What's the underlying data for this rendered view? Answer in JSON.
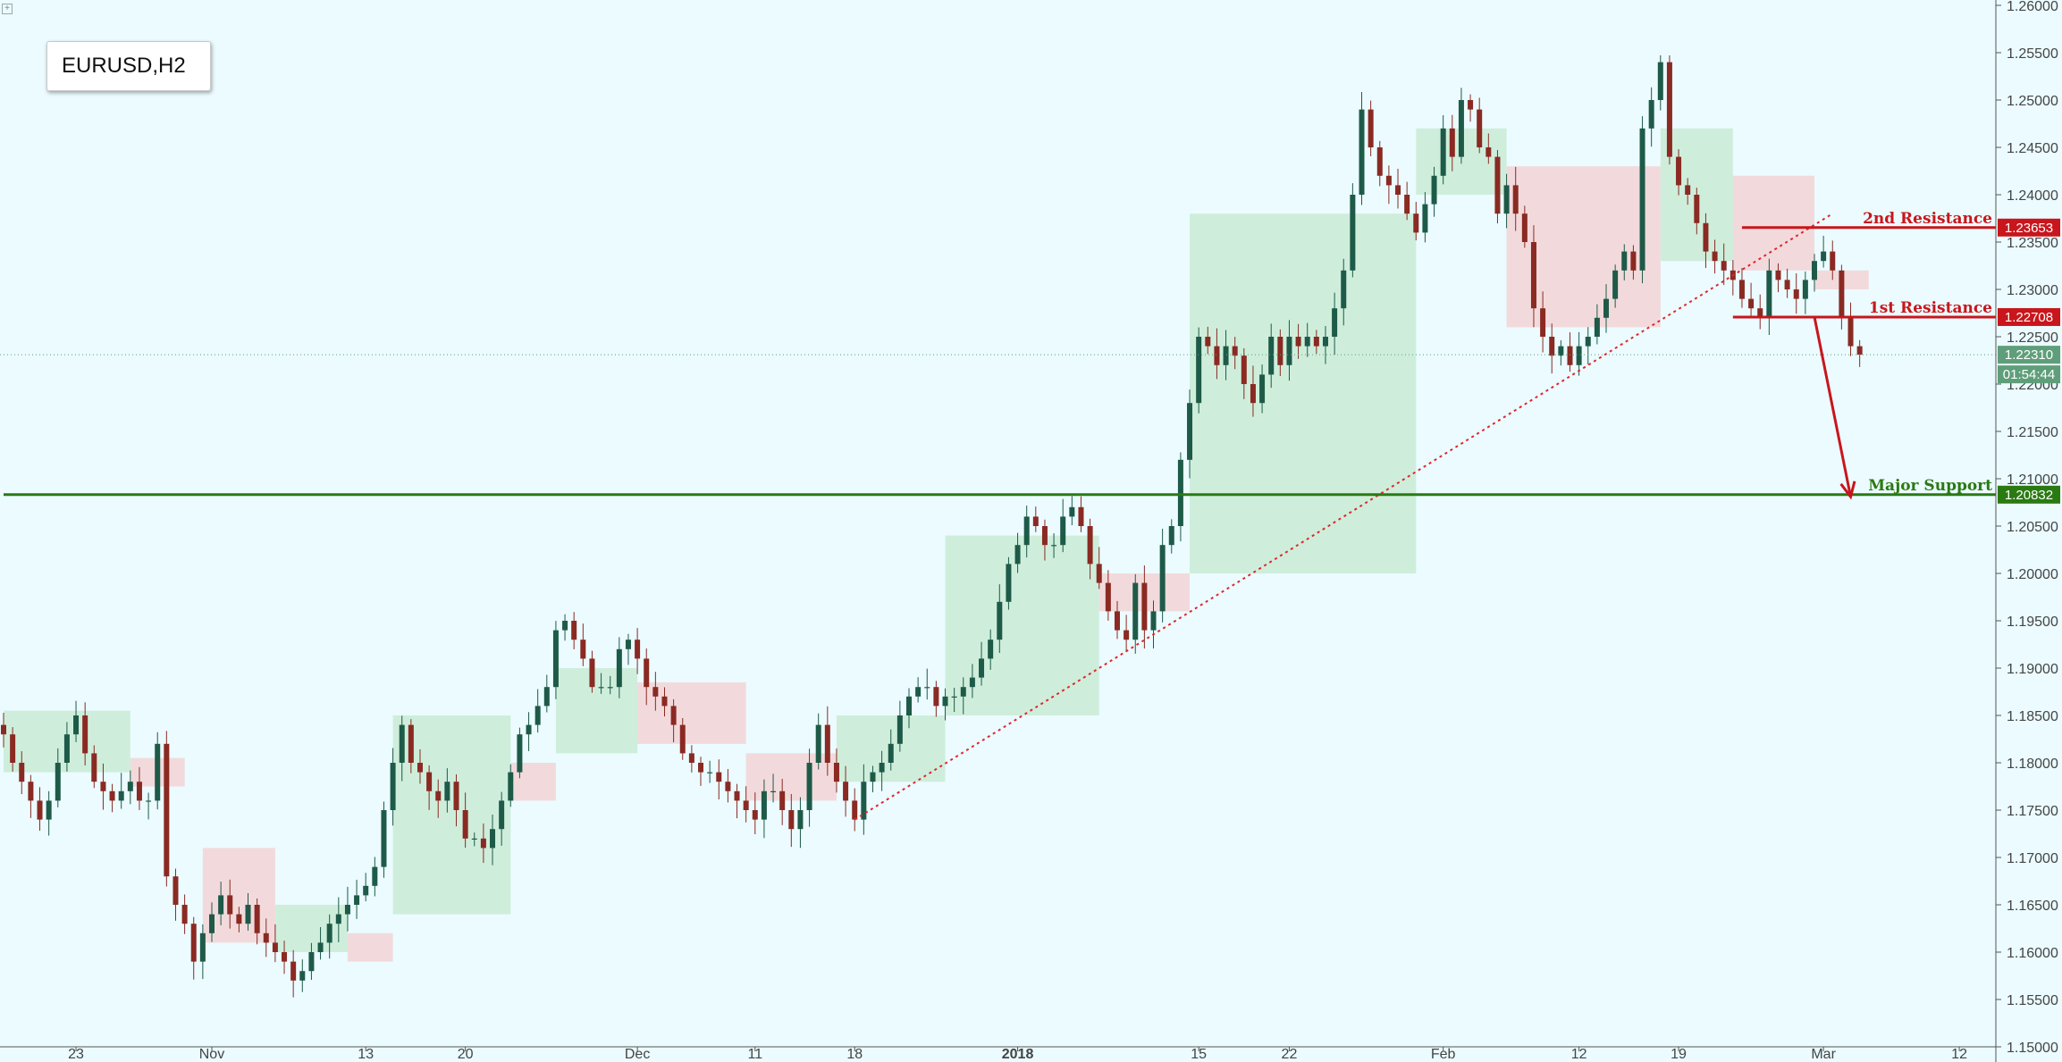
{
  "symbol": "EURUSD,H2",
  "colors": {
    "background": "#ebfbff",
    "up_candle": "#1e5a48",
    "down_candle": "#8a2a22",
    "resistance": "#c8161c",
    "support": "#2a7a12",
    "trendline": "#e0262a",
    "cloud_bull": "#c9ebd5",
    "cloud_bear": "#f3d3d6",
    "last_price": "#5f9e7a"
  },
  "chart_data": {
    "type": "candlestick",
    "title": "EURUSD,H2",
    "ylim": [
      1.15,
      1.26
    ],
    "y_ticks": [
      "1.15000",
      "1.15500",
      "1.16000",
      "1.16500",
      "1.17000",
      "1.17500",
      "1.18000",
      "1.18500",
      "1.19000",
      "1.19500",
      "1.20000",
      "1.20500",
      "1.21000",
      "1.21500",
      "1.22000",
      "1.22500",
      "1.23000",
      "1.23500",
      "1.24000",
      "1.24500",
      "1.25000",
      "1.25500",
      "1.26000"
    ],
    "x_ticks": [
      {
        "label": "23",
        "bar": 8
      },
      {
        "label": "Nov",
        "bar": 23
      },
      {
        "label": "13",
        "bar": 40
      },
      {
        "label": "20",
        "bar": 51
      },
      {
        "label": "Dec",
        "bar": 70
      },
      {
        "label": "11",
        "bar": 83
      },
      {
        "label": "18",
        "bar": 94
      },
      {
        "label": "2018",
        "bar": 112
      },
      {
        "label": "15",
        "bar": 132
      },
      {
        "label": "22",
        "bar": 142
      },
      {
        "label": "Feb",
        "bar": 159
      },
      {
        "label": "12",
        "bar": 174
      },
      {
        "label": "19",
        "bar": 185
      },
      {
        "label": "Mar",
        "bar": 201
      },
      {
        "label": "12",
        "bar": 216
      }
    ],
    "close": [
      1.183,
      1.18,
      1.178,
      1.176,
      1.174,
      1.176,
      1.18,
      1.183,
      1.185,
      1.181,
      1.178,
      1.177,
      1.176,
      1.177,
      1.178,
      1.176,
      1.176,
      1.182,
      1.168,
      1.165,
      1.163,
      1.159,
      1.162,
      1.164,
      1.166,
      1.164,
      1.163,
      1.165,
      1.162,
      1.161,
      1.16,
      1.159,
      1.157,
      1.158,
      1.16,
      1.161,
      1.163,
      1.164,
      1.165,
      1.166,
      1.167,
      1.169,
      1.175,
      1.18,
      1.184,
      1.18,
      1.179,
      1.177,
      1.176,
      1.178,
      1.175,
      1.172,
      1.172,
      1.171,
      1.173,
      1.176,
      1.179,
      1.183,
      1.184,
      1.186,
      1.188,
      1.194,
      1.195,
      1.193,
      1.191,
      1.188,
      1.188,
      1.188,
      1.192,
      1.193,
      1.191,
      1.188,
      1.187,
      1.186,
      1.184,
      1.181,
      1.18,
      1.179,
      1.179,
      1.178,
      1.177,
      1.176,
      1.175,
      1.174,
      1.177,
      1.177,
      1.175,
      1.173,
      1.175,
      1.18,
      1.184,
      1.18,
      1.178,
      1.176,
      1.174,
      1.178,
      1.179,
      1.18,
      1.182,
      1.185,
      1.187,
      1.188,
      1.188,
      1.186,
      1.187,
      1.187,
      1.188,
      1.189,
      1.191,
      1.193,
      1.197,
      1.201,
      1.203,
      1.206,
      1.205,
      1.203,
      1.203,
      1.206,
      1.207,
      1.205,
      1.201,
      1.199,
      1.196,
      1.194,
      1.193,
      1.199,
      1.194,
      1.196,
      1.203,
      1.205,
      1.212,
      1.218,
      1.225,
      1.224,
      1.222,
      1.224,
      1.223,
      1.22,
      1.218,
      1.221,
      1.225,
      1.222,
      1.225,
      1.224,
      1.225,
      1.224,
      1.225,
      1.228,
      1.232,
      1.24,
      1.249,
      1.245,
      1.242,
      1.241,
      1.24,
      1.238,
      1.236,
      1.239,
      1.242,
      1.247,
      1.244,
      1.25,
      1.249,
      1.245,
      1.244,
      1.238,
      1.241,
      1.238,
      1.235,
      1.228,
      1.225,
      1.223,
      1.224,
      1.222,
      1.224,
      1.225,
      1.227,
      1.229,
      1.232,
      1.234,
      1.232,
      1.247,
      1.25,
      1.254,
      1.244,
      1.241,
      1.24,
      1.237,
      1.234,
      1.233,
      1.232,
      1.231,
      1.229,
      1.228,
      1.227,
      1.232,
      1.231,
      1.23,
      1.229,
      1.231,
      1.233,
      1.234,
      1.232,
      1.227,
      1.224,
      1.2231
    ],
    "last_bar": 201,
    "cloud": [
      {
        "bars": [
          0,
          14
        ],
        "top": 1.1855,
        "bottom": 1.179,
        "kind": "bull"
      },
      {
        "bars": [
          14,
          20
        ],
        "top": 1.1805,
        "bottom": 1.1775,
        "kind": "bear"
      },
      {
        "bars": [
          22,
          30
        ],
        "top": 1.171,
        "bottom": 1.161,
        "kind": "bear"
      },
      {
        "bars": [
          30,
          38
        ],
        "top": 1.165,
        "bottom": 1.16,
        "kind": "bull"
      },
      {
        "bars": [
          38,
          43
        ],
        "top": 1.162,
        "bottom": 1.159,
        "kind": "bear"
      },
      {
        "bars": [
          43,
          56
        ],
        "top": 1.185,
        "bottom": 1.164,
        "kind": "bull"
      },
      {
        "bars": [
          56,
          61
        ],
        "top": 1.18,
        "bottom": 1.176,
        "kind": "bear"
      },
      {
        "bars": [
          61,
          70
        ],
        "top": 1.19,
        "bottom": 1.181,
        "kind": "bull"
      },
      {
        "bars": [
          70,
          82
        ],
        "top": 1.1885,
        "bottom": 1.182,
        "kind": "bear"
      },
      {
        "bars": [
          82,
          92
        ],
        "top": 1.181,
        "bottom": 1.176,
        "kind": "bear"
      },
      {
        "bars": [
          92,
          104
        ],
        "top": 1.185,
        "bottom": 1.178,
        "kind": "bull"
      },
      {
        "bars": [
          104,
          121
        ],
        "top": 1.204,
        "bottom": 1.185,
        "kind": "bull"
      },
      {
        "bars": [
          121,
          131
        ],
        "top": 1.2,
        "bottom": 1.196,
        "kind": "bear"
      },
      {
        "bars": [
          131,
          156
        ],
        "top": 1.238,
        "bottom": 1.2,
        "kind": "bull"
      },
      {
        "bars": [
          156,
          166
        ],
        "top": 1.247,
        "bottom": 1.24,
        "kind": "bull"
      },
      {
        "bars": [
          166,
          183
        ],
        "top": 1.243,
        "bottom": 1.226,
        "kind": "bear"
      },
      {
        "bars": [
          183,
          191
        ],
        "top": 1.247,
        "bottom": 1.233,
        "kind": "bull"
      },
      {
        "bars": [
          191,
          200
        ],
        "top": 1.242,
        "bottom": 1.232,
        "kind": "bear"
      },
      {
        "bars": [
          200,
          206
        ],
        "top": 1.232,
        "bottom": 1.23,
        "kind": "bear"
      }
    ],
    "trendline": {
      "from": {
        "bar": 94,
        "price": 1.174
      },
      "to": {
        "bar": 202,
        "price": 1.238
      }
    },
    "current_price_line": 1.2231,
    "levels": [
      {
        "name": "2nd Resistance",
        "value": 1.23653,
        "tag": "1.23653",
        "from_bar": 192,
        "kind": "resistance"
      },
      {
        "name": "1st Resistance",
        "value": 1.22708,
        "tag": "1.22708",
        "from_bar": 191,
        "kind": "resistance"
      },
      {
        "name": "Major Support",
        "value": 1.20832,
        "tag": "1.20832",
        "from_bar": 0,
        "kind": "support"
      }
    ],
    "arrow": {
      "from": {
        "bar": 200,
        "price": 1.2271
      },
      "to": {
        "bar": 204,
        "price": 1.2081
      }
    },
    "price_tag": "1.22310",
    "countdown": "01:54:44"
  }
}
